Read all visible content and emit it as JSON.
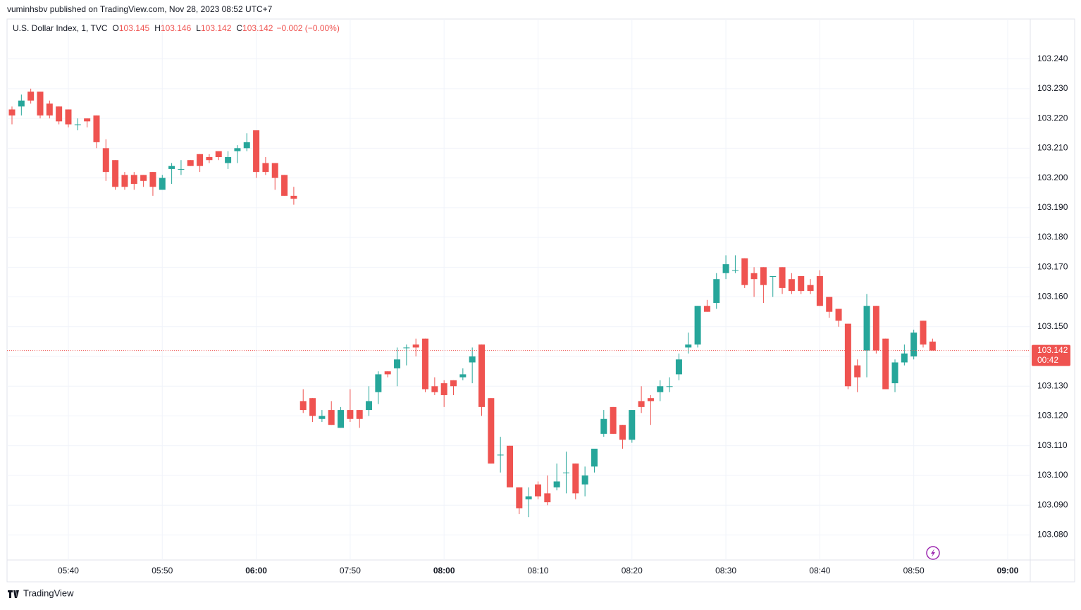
{
  "published": "vuminhsbv published on TradingView.com, Nov 28, 2023 08:52 UTC+7",
  "footer": "TradingView",
  "chart_data": {
    "type": "candlestick",
    "title": "U.S. Dollar Index, 1, TVC",
    "legend": {
      "o_label": "O",
      "o": 103.145,
      "h_label": "H",
      "h": 103.146,
      "l_label": "L",
      "l": 103.142,
      "c_label": "C",
      "c": 103.142,
      "change": "−0.002 (−0.00%)"
    },
    "up_color": "#26a69a",
    "down_color": "#ef5350",
    "last_price": 103.142,
    "countdown": "00:42",
    "grid": true,
    "categories": [
      "05:34",
      "05:35",
      "05:36",
      "05:37",
      "05:38",
      "05:39",
      "05:40",
      "05:41",
      "05:42",
      "05:43",
      "05:44",
      "05:45",
      "05:46",
      "05:47",
      "05:48",
      "05:49",
      "05:50",
      "05:51",
      "05:52",
      "05:53",
      "05:54",
      "05:55",
      "05:56",
      "05:57",
      "05:58",
      "05:59",
      "06:00",
      "06:01",
      "06:02",
      "06:03",
      "06:04",
      "07:45",
      "07:46",
      "07:47",
      "07:48",
      "07:49",
      "07:50",
      "07:51",
      "07:52",
      "07:53",
      "07:54",
      "07:55",
      "07:56",
      "07:57",
      "07:58",
      "07:59",
      "08:00",
      "08:01",
      "08:02",
      "08:03",
      "08:04",
      "08:05",
      "08:06",
      "08:07",
      "08:08",
      "08:09",
      "08:10",
      "08:11",
      "08:12",
      "08:13",
      "08:14",
      "08:15",
      "08:16",
      "08:17",
      "08:18",
      "08:19",
      "08:20",
      "08:21",
      "08:22",
      "08:23",
      "08:24",
      "08:25",
      "08:26",
      "08:27",
      "08:28",
      "08:29",
      "08:30",
      "08:31",
      "08:32",
      "08:33",
      "08:34",
      "08:35",
      "08:36",
      "08:37",
      "08:38",
      "08:39",
      "08:40",
      "08:41",
      "08:42",
      "08:43",
      "08:44",
      "08:45",
      "08:46",
      "08:47",
      "08:48",
      "08:49",
      "08:50",
      "08:51",
      "08:52"
    ],
    "open": [
      103.223,
      103.224,
      103.229,
      103.229,
      103.225,
      103.224,
      103.223,
      103.218,
      103.22,
      103.221,
      103.21,
      103.206,
      103.201,
      103.201,
      103.201,
      103.202,
      103.196,
      103.203,
      103.203,
      103.206,
      103.208,
      103.207,
      103.209,
      103.205,
      103.209,
      103.21,
      103.216,
      103.205,
      103.205,
      103.201,
      103.194,
      103.125,
      103.126,
      103.119,
      103.122,
      103.116,
      103.122,
      103.122,
      103.122,
      103.128,
      103.135,
      103.136,
      103.143,
      103.144,
      103.146,
      103.13,
      103.131,
      103.132,
      103.133,
      103.138,
      103.144,
      103.126,
      103.107,
      103.11,
      103.096,
      103.092,
      103.097,
      103.094,
      103.096,
      103.101,
      103.104,
      103.097,
      103.103,
      103.114,
      103.123,
      103.117,
      103.112,
      103.125,
      103.126,
      103.128,
      103.13,
      103.134,
      103.143,
      103.144,
      103.157,
      103.158,
      103.168,
      103.169,
      103.173,
      103.168,
      103.17,
      103.167,
      103.17,
      103.166,
      103.167,
      103.164,
      103.167,
      103.16,
      103.156,
      103.151,
      103.137,
      103.142,
      103.157,
      103.146,
      103.131,
      103.138,
      103.14,
      103.152,
      103.145
    ],
    "high": [
      103.224,
      103.228,
      103.23,
      103.229,
      103.226,
      103.224,
      103.223,
      103.22,
      103.22,
      103.221,
      103.213,
      103.206,
      103.202,
      103.202,
      103.201,
      103.202,
      103.201,
      103.205,
      103.206,
      103.206,
      103.208,
      103.208,
      103.209,
      103.209,
      103.211,
      103.215,
      103.216,
      103.207,
      103.205,
      103.201,
      103.197,
      103.129,
      103.126,
      103.122,
      103.125,
      103.123,
      103.129,
      103.122,
      103.13,
      103.135,
      103.135,
      103.143,
      103.144,
      103.146,
      103.146,
      103.133,
      103.132,
      103.132,
      103.136,
      103.143,
      103.144,
      103.126,
      103.113,
      103.11,
      103.096,
      103.096,
      103.098,
      103.1,
      103.104,
      103.108,
      103.104,
      103.103,
      103.109,
      103.122,
      103.123,
      103.117,
      103.122,
      103.13,
      103.127,
      103.132,
      103.133,
      103.141,
      103.148,
      103.157,
      103.159,
      103.168,
      103.174,
      103.174,
      103.173,
      103.17,
      103.17,
      103.167,
      103.17,
      103.168,
      103.167,
      103.166,
      103.169,
      103.16,
      103.156,
      103.151,
      103.139,
      103.161,
      103.157,
      103.146,
      103.139,
      103.144,
      103.149,
      103.152,
      103.146
    ],
    "low": [
      103.218,
      103.221,
      103.225,
      103.22,
      103.22,
      103.218,
      103.217,
      103.216,
      103.217,
      103.21,
      103.199,
      103.196,
      103.196,
      103.196,
      103.197,
      103.194,
      103.196,
      103.198,
      103.201,
      103.204,
      103.202,
      103.205,
      103.206,
      103.203,
      103.205,
      103.209,
      103.2,
      103.201,
      103.196,
      103.194,
      103.191,
      103.121,
      103.118,
      103.118,
      103.117,
      103.116,
      103.118,
      103.116,
      103.12,
      103.124,
      103.133,
      103.13,
      103.137,
      103.14,
      103.128,
      103.127,
      103.123,
      103.127,
      103.132,
      103.131,
      103.12,
      103.104,
      103.101,
      103.096,
      103.087,
      103.086,
      103.092,
      103.09,
      103.095,
      103.094,
      103.092,
      103.093,
      103.101,
      103.113,
      103.114,
      103.109,
      103.111,
      103.121,
      103.117,
      103.125,
      103.128,
      103.132,
      103.141,
      103.143,
      103.155,
      103.156,
      103.166,
      103.168,
      103.163,
      103.16,
      103.158,
      103.16,
      103.161,
      103.161,
      103.161,
      103.161,
      103.157,
      103.153,
      103.15,
      103.129,
      103.128,
      103.133,
      103.141,
      103.129,
      103.128,
      103.137,
      103.139,
      103.143,
      103.142
    ],
    "close": [
      103.221,
      103.226,
      103.226,
      103.221,
      103.221,
      103.219,
      103.218,
      103.218,
      103.219,
      103.212,
      103.202,
      103.197,
      103.197,
      103.198,
      103.199,
      103.197,
      103.2,
      103.204,
      103.203,
      103.204,
      103.204,
      103.206,
      103.207,
      103.207,
      103.21,
      103.212,
      103.202,
      103.202,
      103.2,
      103.194,
      103.193,
      103.122,
      103.12,
      103.12,
      103.117,
      103.122,
      103.119,
      103.119,
      103.125,
      103.134,
      103.134,
      103.139,
      103.143,
      103.143,
      103.129,
      103.128,
      103.127,
      103.13,
      103.134,
      103.14,
      103.123,
      103.104,
      103.107,
      103.096,
      103.089,
      103.093,
      103.093,
      103.091,
      103.098,
      103.101,
      103.094,
      103.1,
      103.109,
      103.119,
      103.114,
      103.112,
      103.122,
      103.123,
      103.125,
      103.13,
      103.13,
      103.139,
      103.144,
      103.157,
      103.155,
      103.166,
      103.171,
      103.169,
      103.164,
      103.166,
      103.164,
      103.167,
      103.163,
      103.162,
      103.162,
      103.162,
      103.157,
      103.155,
      103.152,
      103.13,
      103.133,
      103.157,
      103.142,
      103.129,
      103.138,
      103.141,
      103.148,
      103.144,
      103.142
    ],
    "ylim": [
      103.0716,
      103.2534
    ],
    "yticks": [
      {
        "value": 103.08,
        "label": "103.080"
      },
      {
        "value": 103.09,
        "label": "103.090"
      },
      {
        "value": 103.1,
        "label": "103.100"
      },
      {
        "value": 103.11,
        "label": "103.110"
      },
      {
        "value": 103.12,
        "label": "103.120"
      },
      {
        "value": 103.13,
        "label": "103.130"
      },
      {
        "value": 103.14,
        "label": "103.140"
      },
      {
        "value": 103.15,
        "label": "103.150"
      },
      {
        "value": 103.16,
        "label": "103.160"
      },
      {
        "value": 103.17,
        "label": "103.170"
      },
      {
        "value": 103.18,
        "label": "103.180"
      },
      {
        "value": 103.19,
        "label": "103.190"
      },
      {
        "value": 103.2,
        "label": "103.200"
      },
      {
        "value": 103.21,
        "label": "103.210"
      },
      {
        "value": 103.22,
        "label": "103.220"
      },
      {
        "value": 103.23,
        "label": "103.230"
      },
      {
        "value": 103.24,
        "label": "103.240"
      }
    ],
    "xticks": [
      "05:40",
      "05:50",
      "06:00",
      "07:50",
      "08:00",
      "08:10",
      "08:20",
      "08:30",
      "08:40",
      "08:50",
      "09:00"
    ]
  }
}
